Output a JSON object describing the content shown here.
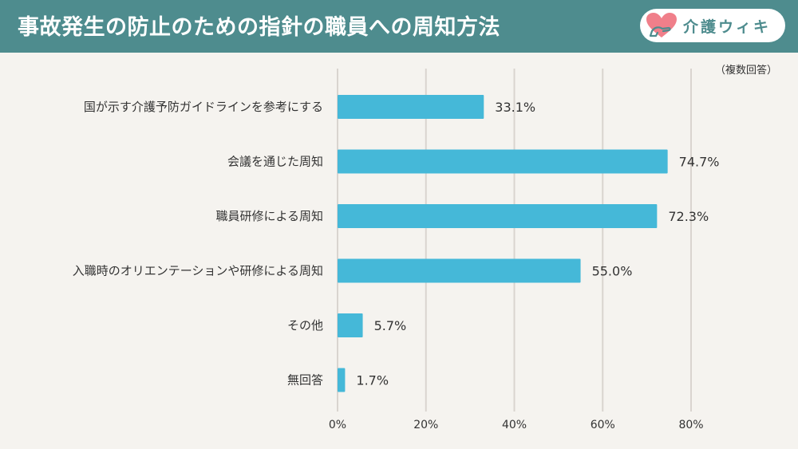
{
  "header": {
    "title": "事故発生の防止のための指針の職員への周知方法",
    "logo_text": "介護ウィキ"
  },
  "note": "（複数回答）",
  "colors": {
    "header_bg": "#4e8c8e",
    "bar": "#45b8d8",
    "grid": "#d9d4cf",
    "background": "#f5f3ef",
    "logo_heart": "#f07f8a"
  },
  "chart_data": {
    "type": "bar",
    "orientation": "horizontal",
    "title": "事故発生の防止のための指針の職員への周知方法",
    "categories": [
      "国が示す介護予防ガイドラインを参考にする",
      "会議を通じた周知",
      "職員研修による周知",
      "入職時のオリエンテーションや研修による周知",
      "その他",
      "無回答"
    ],
    "values": [
      33.1,
      74.7,
      72.3,
      55.0,
      5.7,
      1.7
    ],
    "value_labels": [
      "33.1%",
      "74.7%",
      "72.3%",
      "55.0%",
      "5.7%",
      "1.7%"
    ],
    "xlim": [
      0,
      80
    ],
    "xticks": [
      "0%",
      "20%",
      "40%",
      "60%",
      "80%"
    ],
    "unit": "%",
    "grid": true,
    "legend": "none"
  }
}
